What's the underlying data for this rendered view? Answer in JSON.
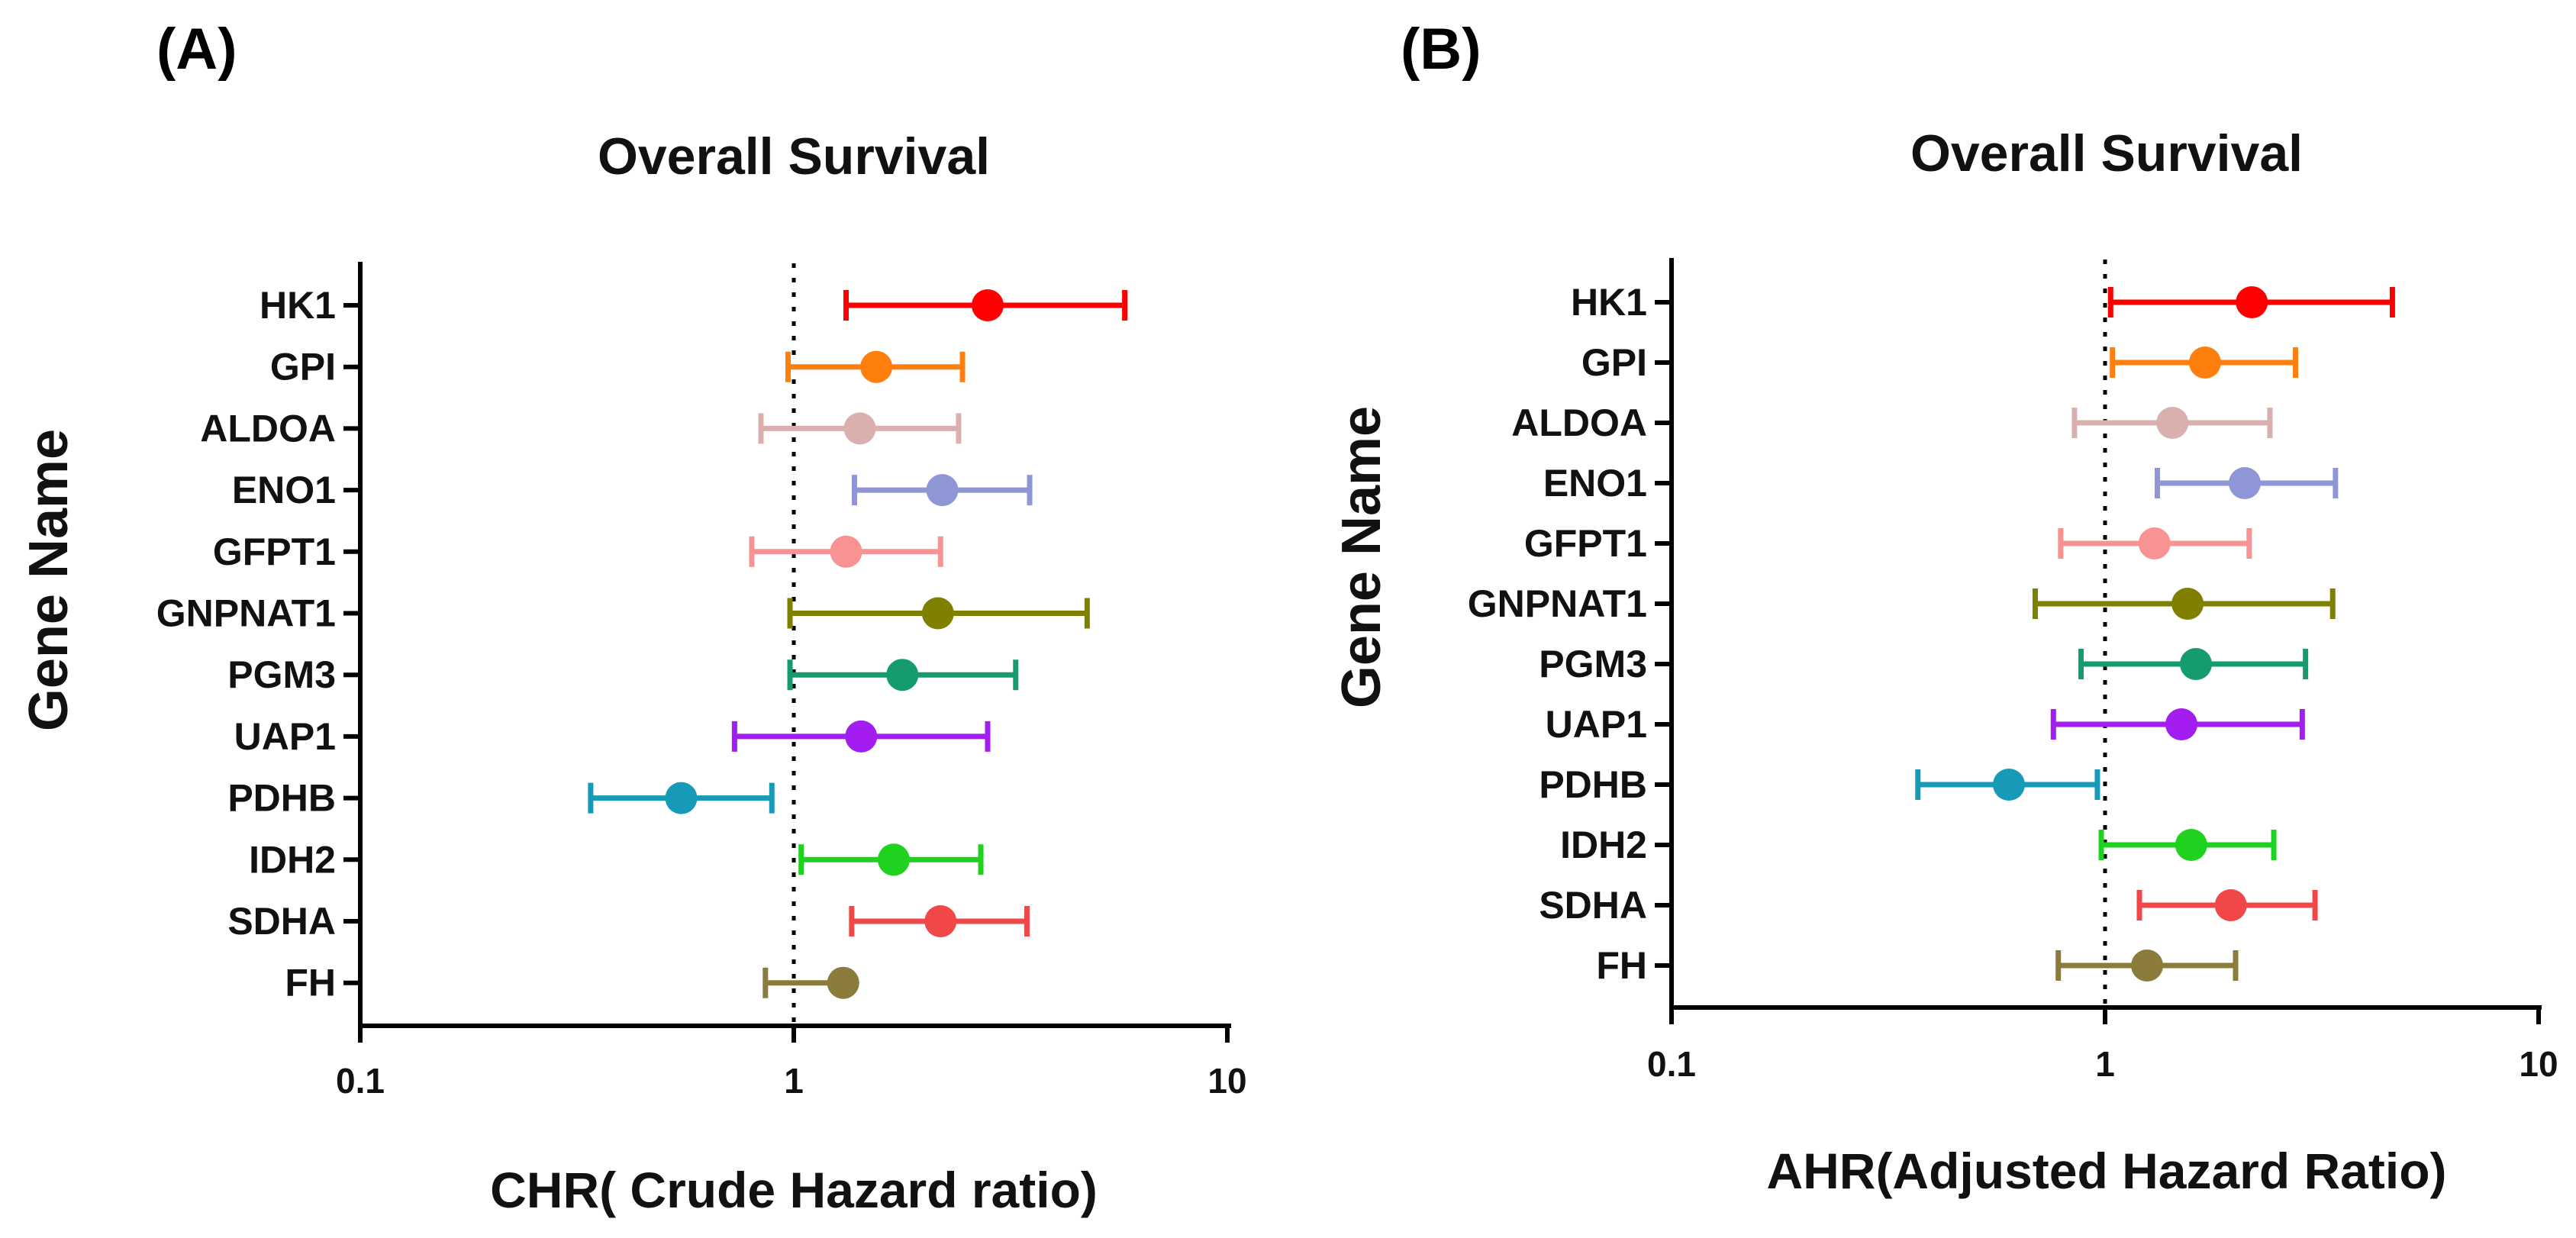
{
  "chart_data": [
    {
      "type": "forest",
      "panel_label": "(A)",
      "title": "Overall Survival",
      "xlabel": "CHR( Crude Hazard ratio)",
      "ylabel": "Gene Name",
      "x_scale": "log10",
      "xlim": [
        0.1,
        10
      ],
      "x_ticks": [
        "0.1",
        "1",
        "10"
      ],
      "reference_line": 1,
      "genes": [
        {
          "name": "HK1",
          "hr": 2.8,
          "lo": 1.32,
          "hi": 5.8,
          "color": "#ff0000"
        },
        {
          "name": "GPI",
          "hr": 1.55,
          "lo": 0.97,
          "hi": 2.45,
          "color": "#ff7f0e"
        },
        {
          "name": "ALDOA",
          "hr": 1.42,
          "lo": 0.84,
          "hi": 2.4,
          "color": "#d9b0ae"
        },
        {
          "name": "ENO1",
          "hr": 2.2,
          "lo": 1.38,
          "hi": 3.5,
          "color": "#8e96d6"
        },
        {
          "name": "GFPT1",
          "hr": 1.32,
          "lo": 0.8,
          "hi": 2.18,
          "color": "#f99393"
        },
        {
          "name": "GNPNAT1",
          "hr": 2.15,
          "lo": 0.98,
          "hi": 4.75,
          "color": "#808000"
        },
        {
          "name": "PGM3",
          "hr": 1.78,
          "lo": 0.98,
          "hi": 3.25,
          "color": "#169b6c"
        },
        {
          "name": "UAP1",
          "hr": 1.43,
          "lo": 0.73,
          "hi": 2.8,
          "color": "#a31cf0"
        },
        {
          "name": "PDHB",
          "hr": 0.55,
          "lo": 0.34,
          "hi": 0.89,
          "color": "#1799b8"
        },
        {
          "name": "IDH2",
          "hr": 1.7,
          "lo": 1.04,
          "hi": 2.7,
          "color": "#1fd21f"
        },
        {
          "name": "SDHA",
          "hr": 2.18,
          "lo": 1.36,
          "hi": 3.45,
          "color": "#f04848"
        },
        {
          "name": "FH",
          "hr": 1.3,
          "lo": 0.86,
          "hi": 1.32,
          "color": "#8c7c3c"
        }
      ]
    },
    {
      "type": "forest",
      "panel_label": "(B)",
      "title": "Overall Survival",
      "xlabel": "AHR(Adjusted Hazard Ratio)",
      "ylabel": "Gene Name",
      "x_scale": "log10",
      "xlim": [
        0.1,
        10
      ],
      "x_ticks": [
        "0.1",
        "1",
        "10"
      ],
      "reference_line": 1,
      "genes": [
        {
          "name": "HK1",
          "hr": 2.18,
          "lo": 1.03,
          "hi": 4.6,
          "color": "#ff0000"
        },
        {
          "name": "GPI",
          "hr": 1.7,
          "lo": 1.04,
          "hi": 2.75,
          "color": "#ff7f0e"
        },
        {
          "name": "ALDOA",
          "hr": 1.43,
          "lo": 0.85,
          "hi": 2.4,
          "color": "#d9b0ae"
        },
        {
          "name": "ENO1",
          "hr": 2.1,
          "lo": 1.32,
          "hi": 3.4,
          "color": "#8e96d6"
        },
        {
          "name": "GFPT1",
          "hr": 1.3,
          "lo": 0.79,
          "hi": 2.15,
          "color": "#f99393"
        },
        {
          "name": "GNPNAT1",
          "hr": 1.55,
          "lo": 0.69,
          "hi": 3.35,
          "color": "#808000"
        },
        {
          "name": "PGM3",
          "hr": 1.62,
          "lo": 0.88,
          "hi": 2.9,
          "color": "#169b6c"
        },
        {
          "name": "UAP1",
          "hr": 1.5,
          "lo": 0.76,
          "hi": 2.85,
          "color": "#a31cf0"
        },
        {
          "name": "PDHB",
          "hr": 0.6,
          "lo": 0.37,
          "hi": 0.96,
          "color": "#1799b8"
        },
        {
          "name": "IDH2",
          "hr": 1.58,
          "lo": 0.98,
          "hi": 2.45,
          "color": "#1fd21f"
        },
        {
          "name": "SDHA",
          "hr": 1.95,
          "lo": 1.2,
          "hi": 3.05,
          "color": "#f04848"
        },
        {
          "name": "FH",
          "hr": 1.25,
          "lo": 0.78,
          "hi": 2.0,
          "color": "#8c7c3c"
        }
      ]
    }
  ]
}
